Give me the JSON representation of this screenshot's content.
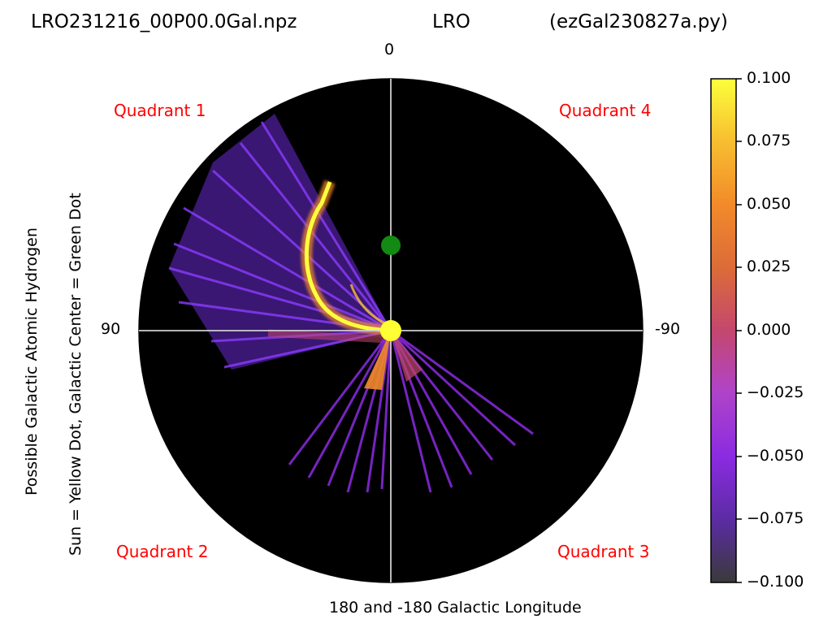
{
  "header": {
    "file_name": "LRO231216_00P00.0Gal.npz",
    "station": "LRO",
    "script_name": "(ezGal230827a.py)"
  },
  "chart_data": {
    "type": "heatmap",
    "projection": "polar",
    "title_parts": [
      "LRO231216_00P00.0Gal.npz",
      "LRO",
      "(ezGal230827a.py)"
    ],
    "direction_labels": {
      "top": "0",
      "left": "90",
      "right": "-90"
    },
    "xlabel": "180 and -180 Galactic Longitude",
    "ylabel_lines": [
      "Possible Galactic Atomic Hydrogen",
      "Sun = Yellow Dot, Galactic Center = Green Dot"
    ],
    "quadrant_labels": [
      "Quadrant 1",
      "Quadrant 4",
      "Quadrant 2",
      "Quadrant 3"
    ],
    "colorbar": {
      "min": -0.1,
      "max": 0.1,
      "ticks": [
        "0.100",
        "0.075",
        "0.050",
        "0.025",
        "0.000",
        "−0.025",
        "−0.050",
        "−0.075",
        "−0.100"
      ],
      "colormap": [
        "#3a3a3a",
        "#5a2ca0",
        "#8b2be2",
        "#b044c8",
        "#c4476e",
        "#db6a3a",
        "#f28a2a",
        "#f8c030",
        "#fcff3c"
      ]
    },
    "markers": {
      "sun": {
        "label": "Sun",
        "color": "#ffff33"
      },
      "galactic_center": {
        "label": "Galactic Center",
        "color": "#138a13"
      }
    },
    "background_color": "#000000",
    "emission_regions": [
      {
        "name": "quadrant-1-sweep",
        "longitude_range": [
          35,
          75
        ],
        "value": -0.06
      },
      {
        "name": "quadrant-1-spiral-arm",
        "longitude_range": [
          10,
          70
        ],
        "value": 0.09
      },
      {
        "name": "quadrant-2-fan",
        "longitude_range": [
          150,
          180
        ],
        "value": -0.05
      },
      {
        "name": "quadrant-3-fan",
        "longitude_range": [
          -180,
          -125
        ],
        "value": -0.05
      }
    ]
  }
}
